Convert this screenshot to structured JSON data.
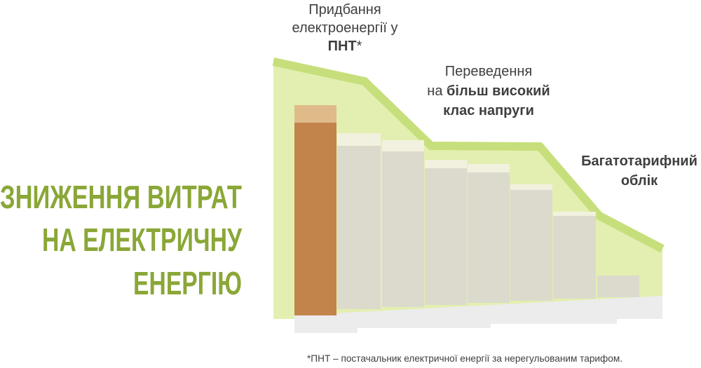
{
  "title": {
    "line1": "ЗНИЖЕННЯ ВИТРАТ",
    "line2": "НА ЕЛЕКТРИЧНУ",
    "line3": "ЕНЕРГІЮ"
  },
  "steps": [
    {
      "line1": "Придбання",
      "line2": "електроенергії у",
      "line3_bold": "ПНТ",
      "line3": "*"
    },
    {
      "line1": "Переведення",
      "line2": "на ",
      "line2_bold": "більш високий",
      "line3_bold": "клас напруги"
    },
    {
      "line1_bold": "Багатотарифний",
      "line2_bold": "облік"
    }
  ],
  "footnote": "*ПНТ – постачальник електричної енергії за нерегульованим тарифом."
}
